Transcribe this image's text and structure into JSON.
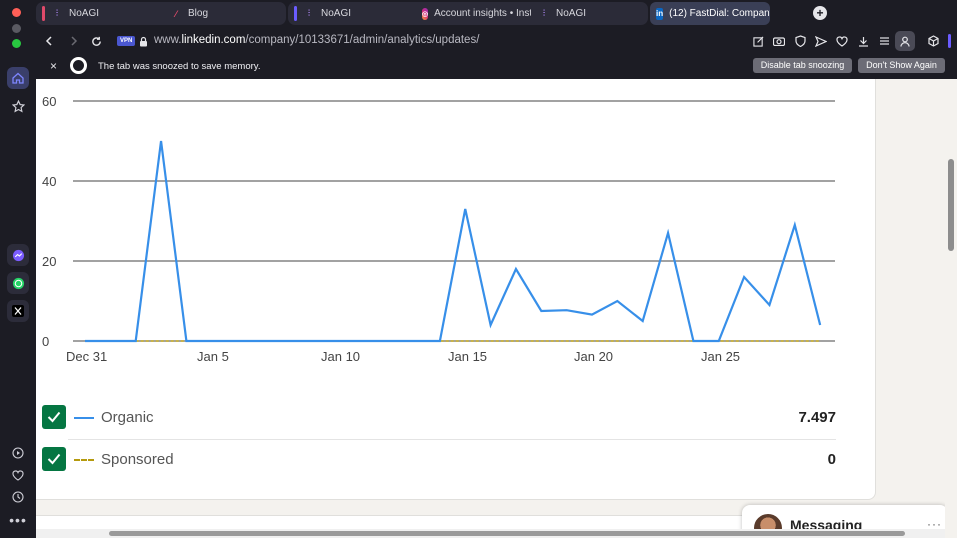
{
  "tabs": [
    {
      "title": "NoAGI",
      "icon": "noagi-icon"
    },
    {
      "title": "Blog",
      "icon": "blog-icon"
    },
    {
      "title": "NoAGI",
      "icon": "noagi-icon"
    },
    {
      "title": "Account insights • Insta",
      "icon": "instagram-icon"
    },
    {
      "title": "NoAGI",
      "icon": "noagi-icon"
    },
    {
      "title": "(12) FastDial: Company",
      "icon": "linkedin-icon"
    }
  ],
  "address": {
    "vpn_label": "VPN",
    "url_prefix": "www.",
    "url_domain": "linkedin.com",
    "url_path": "/company/10133671/admin/analytics/updates/"
  },
  "snooze_bar": {
    "message": "The tab was snoozed to save memory.",
    "disable_label": "Disable tab snoozing",
    "dont_show_label": "Don't Show Again",
    "close_label": "×"
  },
  "chart_data": {
    "type": "line",
    "y_ticks": [
      "60",
      "40",
      "20",
      "0"
    ],
    "ylim": [
      0,
      60
    ],
    "x_tick_labels": [
      "Dec 31",
      "Jan 5",
      "Jan 10",
      "Jan 15",
      "Jan 20",
      "Jan 25"
    ],
    "x": [
      "Dec 31",
      "Jan 1",
      "Jan 2",
      "Jan 3",
      "Jan 4",
      "Jan 5",
      "Jan 6",
      "Jan 7",
      "Jan 8",
      "Jan 9",
      "Jan 10",
      "Jan 11",
      "Jan 12",
      "Jan 13",
      "Jan 14",
      "Jan 15",
      "Jan 16",
      "Jan 17",
      "Jan 18",
      "Jan 19",
      "Jan 20",
      "Jan 21",
      "Jan 22",
      "Jan 23",
      "Jan 24",
      "Jan 25",
      "Jan 26",
      "Jan 27",
      "Jan 28",
      "Jan 29"
    ],
    "series": [
      {
        "name": "Organic",
        "color": "#378fe9",
        "values": [
          0,
          0,
          0,
          50,
          0,
          0,
          0,
          0,
          0,
          0,
          0,
          0,
          0,
          0,
          0,
          33,
          4,
          18,
          7.5,
          7.7,
          6.6,
          10,
          5,
          27,
          0,
          0,
          16,
          9,
          29,
          4
        ]
      },
      {
        "name": "Sponsored",
        "color": "#b59a0e",
        "values": [
          0,
          0,
          0,
          0,
          0,
          0,
          0,
          0,
          0,
          0,
          0,
          0,
          0,
          0,
          0,
          0,
          0,
          0,
          0,
          0,
          0,
          0,
          0,
          0,
          0,
          0,
          0,
          0,
          0,
          0
        ]
      }
    ],
    "grid": true
  },
  "legend": [
    {
      "label": "Organic",
      "value": "7.497",
      "checked": true
    },
    {
      "label": "Sponsored",
      "value": "0",
      "checked": true
    }
  ],
  "messaging": {
    "title": "Messaging",
    "more": "···"
  },
  "colors": {
    "accent": "#6b5cff",
    "linkedin_green": "#057642"
  }
}
